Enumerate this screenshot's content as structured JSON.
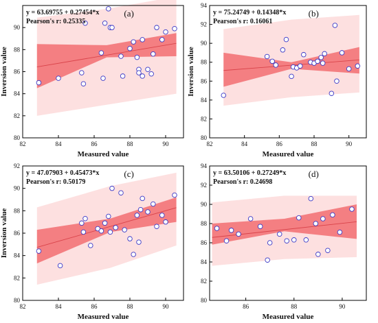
{
  "colors": {
    "prediction_band": "#fde0e0",
    "confidence_band": "#f47f82",
    "fit_line": "#d9434a",
    "marker_edge": "#3b39c6",
    "marker_fill": "#ffffff",
    "axis": "#000000"
  },
  "chart_data": [
    {
      "type": "scatter",
      "panel_label": "(a)",
      "equation": "y = 63.69755 + 0.27454*x",
      "pearson": "Pearson's r: 0.25335",
      "xlabel": "Measured value",
      "ylabel": "Inversion value",
      "xlim": [
        82,
        91
      ],
      "ylim": [
        80,
        92
      ],
      "xticks": [
        82,
        84,
        86,
        88,
        90
      ],
      "yticks": [
        80,
        82,
        84,
        86,
        88,
        90
      ],
      "intercept": 63.69755,
      "slope": 0.27454,
      "confidence_band": {
        "x": [
          82.8,
          86.7,
          90.6
        ],
        "lower": [
          84.5,
          87.3,
          87.4
        ],
        "upper": [
          88.5,
          88.4,
          89.5
        ]
      },
      "prediction_band": {
        "x": [
          82.8,
          86.7,
          90.6
        ],
        "lower": [
          82.0,
          83.0,
          84.0
        ],
        "upper": [
          90.9,
          91.7,
          92.8
        ]
      },
      "x": [
        82.9,
        84.0,
        85.3,
        85.4,
        85.5,
        86.4,
        86.5,
        86.6,
        86.8,
        86.9,
        87.0,
        87.5,
        87.6,
        88.0,
        88.2,
        88.4,
        88.5,
        88.5,
        88.7,
        88.7,
        89.0,
        89.2,
        89.3,
        89.5,
        89.8,
        90.0,
        90.5
      ],
      "y": [
        85.0,
        85.4,
        85.9,
        84.9,
        90.4,
        87.7,
        85.4,
        90.4,
        91.7,
        90.0,
        90.0,
        87.4,
        85.6,
        88.1,
        88.7,
        87.3,
        86.2,
        85.9,
        85.6,
        88.9,
        86.2,
        85.8,
        87.6,
        90.0,
        88.9,
        89.6,
        89.9
      ]
    },
    {
      "type": "scatter",
      "panel_label": "(b)",
      "equation": "y = 75.24749 + 0.14348*x",
      "pearson": "Pearson's r: 0.16061",
      "xlabel": "Measured value",
      "ylabel": "Inversion value",
      "xlim": [
        82,
        91
      ],
      "ylim": [
        80,
        94
      ],
      "xticks": [
        82,
        84,
        86,
        88,
        90
      ],
      "yticks": [
        80,
        82,
        84,
        86,
        88,
        90,
        92,
        94
      ],
      "intercept": 75.24749,
      "slope": 0.14348,
      "confidence_band": {
        "x": [
          82.8,
          86.7,
          90.6
        ],
        "lower": [
          85.4,
          87.3,
          86.8
        ],
        "upper": [
          89.0,
          88.0,
          89.6
        ]
      },
      "prediction_band": {
        "x": [
          82.8,
          86.7,
          90.6
        ],
        "lower": [
          83.4,
          84.3,
          84.8
        ],
        "upper": [
          91.5,
          92.5,
          93.0
        ]
      },
      "x": [
        82.8,
        85.3,
        85.6,
        85.8,
        86.2,
        86.4,
        86.7,
        86.8,
        87.0,
        87.2,
        87.4,
        87.8,
        88.0,
        88.2,
        88.4,
        88.5,
        88.6,
        89.0,
        89.2,
        89.3,
        89.6,
        90.0,
        90.5
      ],
      "y": [
        84.5,
        88.6,
        88.1,
        87.7,
        89.3,
        90.4,
        86.5,
        87.5,
        87.4,
        87.6,
        88.8,
        88.0,
        87.9,
        88.1,
        88.5,
        87.9,
        88.9,
        84.7,
        91.9,
        86.0,
        89.0,
        87.3,
        87.6
      ]
    },
    {
      "type": "scatter",
      "panel_label": "(c)",
      "equation": "y = 47.07903 + 0.45473*x",
      "pearson": "Pearson's r: 0.50179",
      "xlabel": "Measured value",
      "ylabel": "Inversion value",
      "xlim": [
        82,
        91
      ],
      "ylim": [
        80,
        92
      ],
      "xticks": [
        82,
        84,
        86,
        88,
        90
      ],
      "yticks": [
        80,
        82,
        84,
        86,
        88,
        90,
        92
      ],
      "intercept": 47.07903,
      "slope": 0.45473,
      "confidence_band": {
        "x": [
          82.8,
          86.9,
          90.6
        ],
        "lower": [
          83.3,
          86.1,
          87.0
        ],
        "upper": [
          86.3,
          87.3,
          89.2
        ]
      },
      "prediction_band": {
        "x": [
          82.8,
          86.9,
          90.6
        ],
        "lower": [
          81.4,
          82.9,
          84.9
        ],
        "upper": [
          88.3,
          90.2,
          91.4
        ]
      },
      "x": [
        82.9,
        84.1,
        85.3,
        85.4,
        85.5,
        85.8,
        86.2,
        86.4,
        86.6,
        86.8,
        86.9,
        87.0,
        87.2,
        87.5,
        87.7,
        88.0,
        88.2,
        88.4,
        88.5,
        88.6,
        88.7,
        89.0,
        89.3,
        89.5,
        89.8,
        90.0,
        90.5
      ],
      "y": [
        84.4,
        83.1,
        86.9,
        86.1,
        87.3,
        84.9,
        86.4,
        86.2,
        86.9,
        87.5,
        86.1,
        90.0,
        86.5,
        89.6,
        86.3,
        85.5,
        84.1,
        87.6,
        85.2,
        88.1,
        89.1,
        87.9,
        88.6,
        86.6,
        87.6,
        87.0,
        89.4
      ]
    },
    {
      "type": "scatter",
      "panel_label": "(d)",
      "equation": "y = 63.50106 + 0.27249*x",
      "pearson": "Pearson's r: 0.24698",
      "xlabel": "Measured value",
      "ylabel": "",
      "xlim": [
        84.5,
        91
      ],
      "ylim": [
        80,
        94
      ],
      "xticks": [
        86,
        88,
        90
      ],
      "yticks": [
        80,
        82,
        84,
        86,
        88,
        90,
        92,
        94
      ],
      "intercept": 63.50106,
      "slope": 0.27249,
      "confidence_band": {
        "x": [
          84.6,
          87.6,
          90.6
        ],
        "lower": [
          85.8,
          87.2,
          86.4
        ],
        "upper": [
          88.0,
          88.5,
          90.0
        ]
      },
      "prediction_band": {
        "x": [
          84.6,
          87.6,
          90.6
        ],
        "lower": [
          83.6,
          84.3,
          84.5
        ],
        "upper": [
          90.2,
          90.9,
          90.9
        ]
      },
      "x": [
        84.8,
        85.2,
        85.4,
        85.7,
        86.2,
        86.6,
        86.9,
        87.0,
        87.4,
        87.7,
        88.0,
        88.2,
        88.5,
        88.7,
        88.9,
        89.0,
        89.2,
        89.4,
        89.6,
        89.9,
        90.4
      ],
      "y": [
        87.5,
        86.2,
        87.3,
        86.9,
        88.5,
        87.7,
        84.2,
        86.0,
        86.9,
        86.2,
        86.3,
        88.6,
        86.3,
        90.6,
        88.0,
        84.8,
        88.5,
        85.2,
        88.9,
        87.1,
        89.5
      ]
    }
  ]
}
